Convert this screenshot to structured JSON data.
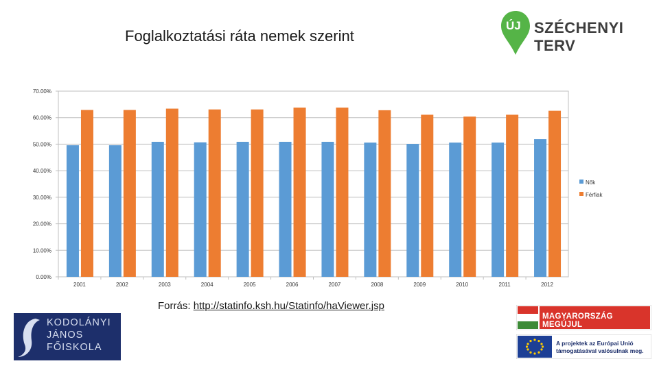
{
  "chart_data": {
    "type": "bar",
    "title": "Foglalkoztatási ráta nemek szerint",
    "categories": [
      "2001",
      "2002",
      "2003",
      "2004",
      "2005",
      "2006",
      "2007",
      "2008",
      "2009",
      "2010",
      "2011",
      "2012"
    ],
    "series": [
      {
        "name": "Nők",
        "color": "#5b9bd5",
        "values": [
          49.6,
          49.6,
          50.9,
          50.7,
          50.9,
          50.9,
          50.9,
          50.6,
          50.1,
          50.6,
          50.6,
          51.9
        ]
      },
      {
        "name": "Férfiak",
        "color": "#ed7d31",
        "values": [
          62.9,
          62.9,
          63.4,
          63.1,
          63.1,
          63.8,
          63.8,
          62.8,
          61.1,
          60.4,
          61.1,
          62.6
        ]
      }
    ],
    "ylim": [
      0,
      0.7
    ],
    "yticks": [
      "0.00%",
      "10.00%",
      "20.00%",
      "30.00%",
      "40.00%",
      "50.00%",
      "60.00%",
      "70.00%"
    ],
    "grid": true,
    "legend_position": "right"
  },
  "source": {
    "label": "Forrás:",
    "url_text": "http://statinfo.ksh.hu/Statinfo/haViewer.jsp"
  },
  "logos": {
    "szechenyi": {
      "badge": "ÚJ",
      "text": "SZÉCHENYI TERV"
    },
    "kodolanyi": {
      "text": "KODOLÁNYI\nJÁNOS\nFŐISKOLA"
    },
    "mm": {
      "text": "MAGYARORSZÁG MEGÚJUL"
    },
    "eu": {
      "text": "A projektek az Európai Unió támogatásával valósulnak meg."
    }
  }
}
